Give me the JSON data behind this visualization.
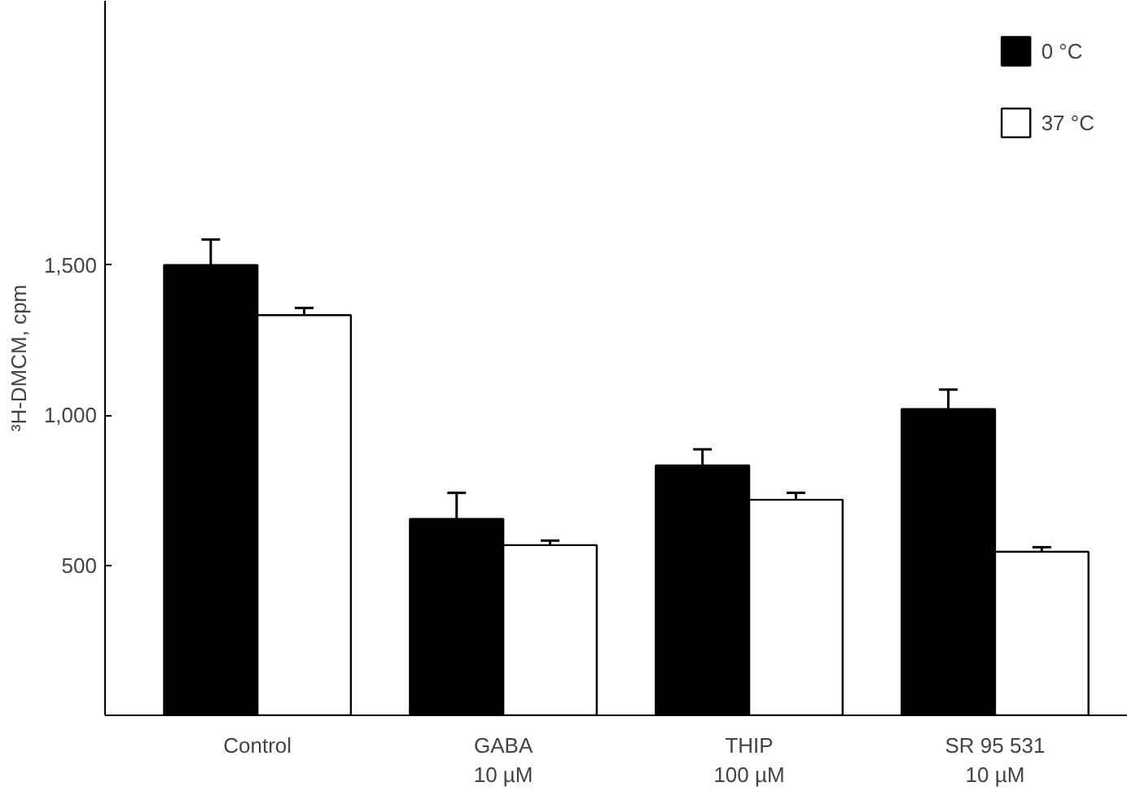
{
  "chart_data": {
    "type": "bar",
    "ylabel": "³H-DMCM, cpm",
    "categories": [
      "Control",
      "GABA\n10 µM",
      "THIP\n100 µM",
      "SR 95 531\n10 µM"
    ],
    "series": [
      {
        "name": "0 °C",
        "color": "#000000",
        "values": [
          1500,
          654,
          832,
          1020
        ],
        "errors": [
          [
            1500,
            1585
          ],
          [
            654,
            741
          ],
          [
            832,
            886
          ],
          [
            1020,
            1085
          ]
        ]
      },
      {
        "name": "37 °C",
        "color": "#ffffff",
        "values": [
          1333,
          567,
          718,
          545
        ],
        "errors": [
          [
            1333,
            1357
          ],
          [
            567,
            582
          ],
          [
            718,
            741
          ],
          [
            545,
            560
          ]
        ]
      }
    ],
    "ylim": [
      0,
      2380
    ],
    "yticks": [
      {
        "value": 500,
        "label": "500"
      },
      {
        "value": 1000,
        "label": "1,000"
      },
      {
        "value": 1500,
        "label": "1,500"
      }
    ],
    "grid": false,
    "legend": "top right"
  }
}
